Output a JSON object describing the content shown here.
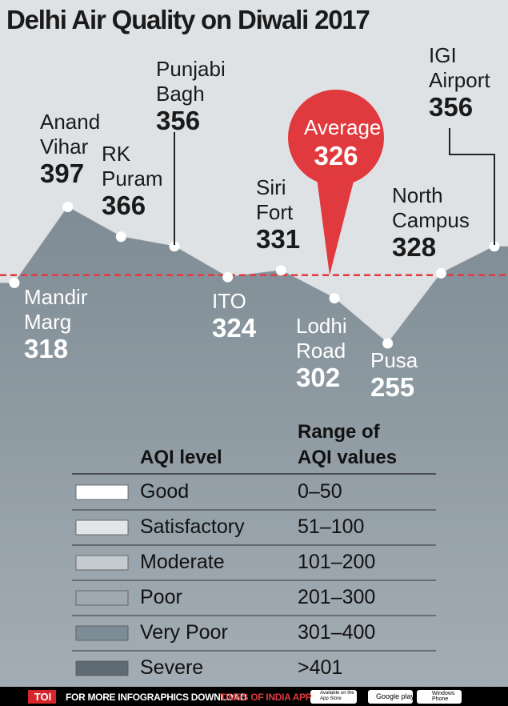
{
  "chart_data": {
    "type": "area",
    "title": "Delhi Air Quality on Diwali 2017",
    "categories": [
      "Mandir\nMarg",
      "Anand\nVihar",
      "RK\nPuram",
      "Punjabi\nBagh",
      "ITO",
      "Siri\nFort",
      "Lodhi\nRoad",
      "Pusa",
      "North\nCampus",
      "IGI\nAirport"
    ],
    "values": [
      318,
      397,
      366,
      356,
      324,
      331,
      302,
      255,
      328,
      356
    ],
    "color": "#8a969e",
    "ylim": [
      0,
      400
    ],
    "average": {
      "label": "Average",
      "value": 326,
      "color": "#e0393e"
    }
  },
  "legend_table": {
    "headers": [
      "AQI level",
      "Range of\nAQI values"
    ],
    "rows": [
      {
        "level": "Good",
        "range": "0–50",
        "color": "#ffffff"
      },
      {
        "level": "Satisfactory",
        "range": "51–100",
        "color": "#e3e6e9"
      },
      {
        "level": "Moderate",
        "range": "101–200",
        "color": "#c4cbd0"
      },
      {
        "level": "Poor",
        "range": "201–300",
        "color": "#9ea9b0"
      },
      {
        "level": "Very Poor",
        "range": "301–400",
        "color": "#7e8c95"
      },
      {
        "level": "Severe",
        "range": ">401",
        "color": "#5e6b74"
      }
    ]
  },
  "footer": {
    "logo": "TOI",
    "text": "FOR MORE INFOGRAPHICS DOWNLOAD",
    "app": "TIMES OF INDIA APP",
    "badges": [
      "Available on the\nApp Store",
      "Google play",
      "Windows\nPhone"
    ]
  }
}
